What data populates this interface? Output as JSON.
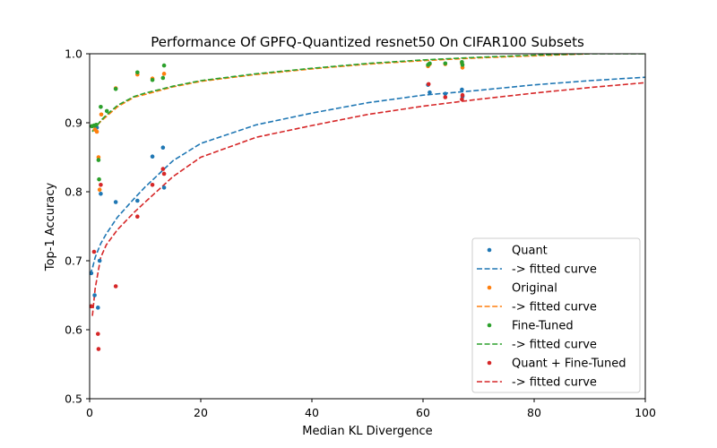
{
  "chart_data": {
    "type": "scatter",
    "title": "Performance Of GPFQ-Quantized resnet50 On CIFAR100 Subsets",
    "xlabel": "Median KL Divergence",
    "ylabel": "Top-1 Accuracy",
    "xlim": [
      0,
      100
    ],
    "ylim": [
      0.5,
      1.0
    ],
    "xticks": [
      "0",
      "20",
      "40",
      "60",
      "80",
      "100"
    ],
    "yticks": [
      "0.5",
      "0.6",
      "0.7",
      "0.8",
      "0.9",
      "1.0"
    ],
    "grid": false,
    "legend_position": "lower-right",
    "series": [
      {
        "name": "Quant",
        "color": "#1f77b4",
        "points": [
          [
            0.3,
            0.682
          ],
          [
            0.5,
            0.895
          ],
          [
            0.9,
            0.65
          ],
          [
            1.3,
            0.893
          ],
          [
            1.5,
            0.632
          ],
          [
            1.8,
            0.7
          ],
          [
            2.0,
            0.797
          ],
          [
            4.7,
            0.785
          ],
          [
            8.6,
            0.787
          ],
          [
            11.3,
            0.851
          ],
          [
            13.2,
            0.864
          ],
          [
            13.4,
            0.806
          ],
          [
            60.9,
            0.955
          ],
          [
            61.2,
            0.944
          ],
          [
            64.0,
            0.942
          ],
          [
            67.0,
            0.948
          ],
          [
            67.1,
            0.938
          ]
        ]
      },
      {
        "name": "Original",
        "color": "#ff7f0e",
        "points": [
          [
            0.5,
            0.895
          ],
          [
            1.0,
            0.89
          ],
          [
            1.3,
            0.887
          ],
          [
            1.6,
            0.85
          ],
          [
            1.8,
            0.803
          ],
          [
            2.1,
            0.912
          ],
          [
            4.7,
            0.95
          ],
          [
            8.6,
            0.97
          ],
          [
            11.3,
            0.964
          ],
          [
            13.4,
            0.971
          ],
          [
            60.9,
            0.982
          ],
          [
            61.2,
            0.985
          ],
          [
            64.0,
            0.985
          ],
          [
            67.0,
            0.986
          ],
          [
            67.1,
            0.98
          ]
        ]
      },
      {
        "name": "Fine-Tuned",
        "color": "#2ca02c",
        "points": [
          [
            0.4,
            0.895
          ],
          [
            0.8,
            0.896
          ],
          [
            1.2,
            0.897
          ],
          [
            1.6,
            0.846
          ],
          [
            1.7,
            0.818
          ],
          [
            2.0,
            0.923
          ],
          [
            3.1,
            0.917
          ],
          [
            4.7,
            0.949
          ],
          [
            8.6,
            0.973
          ],
          [
            11.3,
            0.962
          ],
          [
            13.2,
            0.965
          ],
          [
            13.4,
            0.983
          ],
          [
            60.9,
            0.984
          ],
          [
            61.2,
            0.986
          ],
          [
            64.0,
            0.986
          ],
          [
            67.0,
            0.988
          ],
          [
            67.1,
            0.984
          ]
        ]
      },
      {
        "name": "Quant + Fine-Tuned",
        "color": "#d62728",
        "points": [
          [
            0.3,
            0.634
          ],
          [
            0.8,
            0.713
          ],
          [
            1.5,
            0.594
          ],
          [
            1.6,
            0.572
          ],
          [
            2.0,
            0.81
          ],
          [
            4.7,
            0.663
          ],
          [
            8.6,
            0.764
          ],
          [
            11.3,
            0.81
          ],
          [
            13.2,
            0.833
          ],
          [
            13.4,
            0.826
          ],
          [
            61.0,
            0.956
          ],
          [
            64.0,
            0.937
          ],
          [
            67.0,
            0.934
          ],
          [
            67.1,
            0.94
          ]
        ]
      }
    ],
    "fitted_curves": [
      {
        "name": "-> fitted curve",
        "color": "#1f77b4",
        "x": [
          0.05,
          0.5,
          1,
          2,
          3,
          5,
          8,
          10,
          15,
          20,
          30,
          40,
          50,
          60,
          70,
          80,
          90,
          100
        ],
        "y": [
          0.68,
          0.689,
          0.705,
          0.725,
          0.739,
          0.763,
          0.79,
          0.807,
          0.845,
          0.87,
          0.897,
          0.914,
          0.929,
          0.94,
          0.947,
          0.955,
          0.961,
          0.966
        ]
      },
      {
        "name": "-> fitted curve",
        "color": "#ff7f0e",
        "x": [
          0.5,
          1,
          2,
          3,
          5,
          8,
          10,
          15,
          20,
          30,
          40,
          50,
          60,
          70,
          80,
          90
        ],
        "y": [
          0.888,
          0.893,
          0.902,
          0.909,
          0.923,
          0.937,
          0.941,
          0.952,
          0.96,
          0.97,
          0.978,
          0.985,
          0.99,
          0.994,
          0.997,
          1.0
        ]
      },
      {
        "name": "-> fitted curve",
        "color": "#2ca02c",
        "x": [
          0.5,
          1,
          2,
          3,
          5,
          8,
          10,
          15,
          20,
          30,
          40,
          50,
          60,
          70,
          80,
          90,
          100
        ],
        "y": [
          0.887,
          0.893,
          0.903,
          0.911,
          0.925,
          0.938,
          0.943,
          0.953,
          0.961,
          0.971,
          0.979,
          0.986,
          0.991,
          0.995,
          0.998,
          1.0,
          1.0
        ]
      },
      {
        "name": "-> fitted curve",
        "color": "#d62728",
        "x": [
          0.5,
          1,
          2,
          3,
          5,
          8,
          10,
          15,
          20,
          30,
          40,
          50,
          60,
          70,
          80,
          90,
          100
        ],
        "y": [
          0.62,
          0.66,
          0.705,
          0.723,
          0.745,
          0.77,
          0.785,
          0.822,
          0.85,
          0.879,
          0.896,
          0.912,
          0.924,
          0.934,
          0.943,
          0.951,
          0.958
        ]
      }
    ]
  },
  "legend": [
    {
      "label": "Quant",
      "kind": "marker",
      "color": "#1f77b4"
    },
    {
      "label": "-> fitted curve",
      "kind": "line",
      "color": "#1f77b4"
    },
    {
      "label": "Original",
      "kind": "marker",
      "color": "#ff7f0e"
    },
    {
      "label": "-> fitted curve",
      "kind": "line",
      "color": "#ff7f0e"
    },
    {
      "label": "Fine-Tuned",
      "kind": "marker",
      "color": "#2ca02c"
    },
    {
      "label": "-> fitted curve",
      "kind": "line",
      "color": "#2ca02c"
    },
    {
      "label": "Quant + Fine-Tuned",
      "kind": "marker",
      "color": "#d62728"
    },
    {
      "label": "-> fitted curve",
      "kind": "line",
      "color": "#d62728"
    }
  ]
}
